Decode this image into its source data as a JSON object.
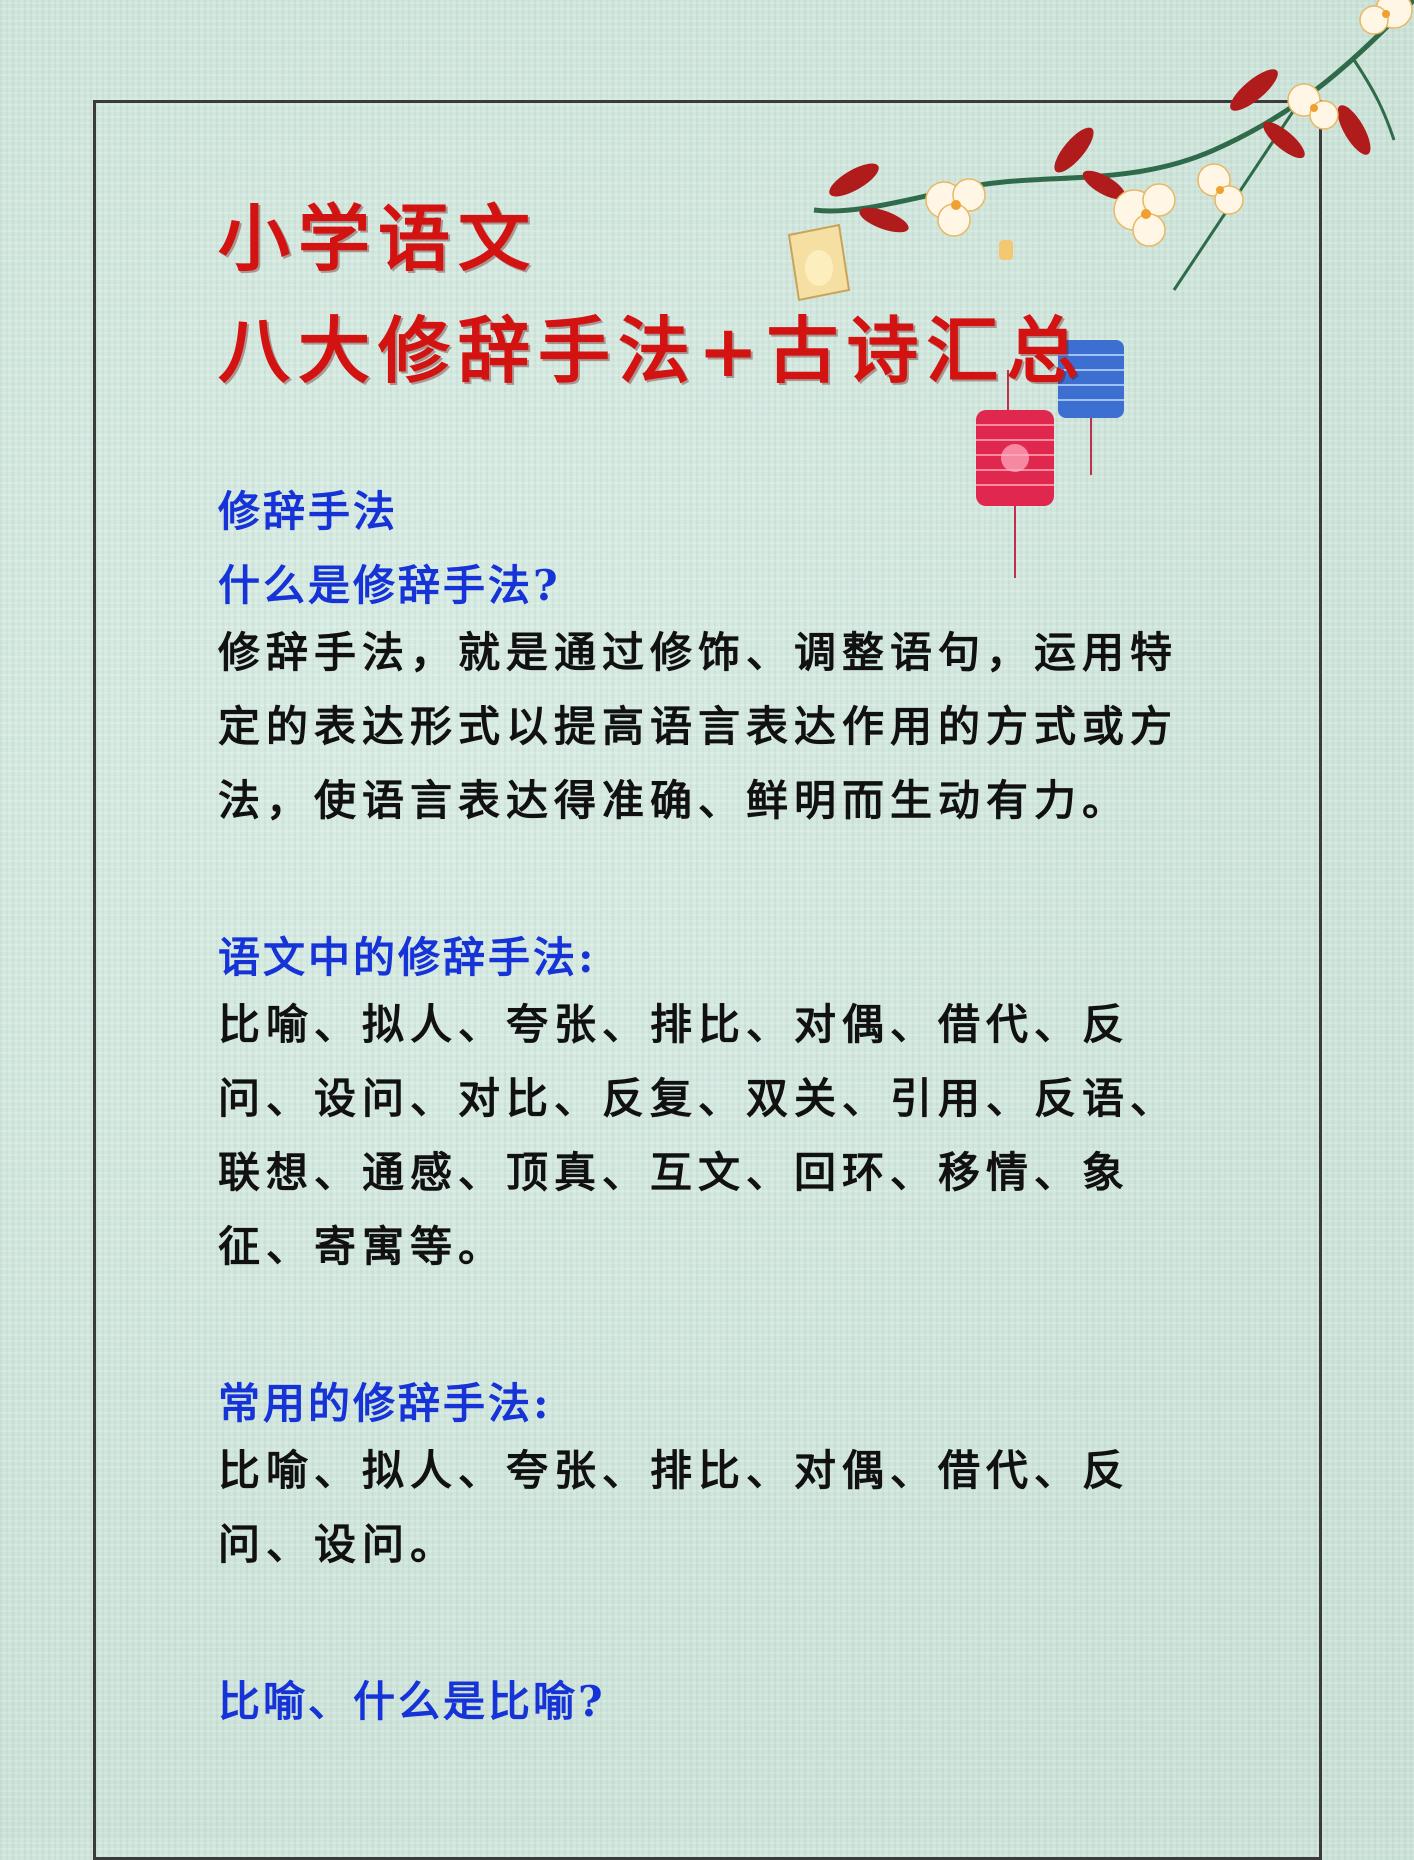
{
  "title": {
    "line1": "小学语文",
    "line2": "八大修辞手法+古诗汇总"
  },
  "sections": {
    "heading1": "修辞手法",
    "question1": "什么是修辞手法?",
    "definition": "修辞手法，就是通过修饰、调整语句，运用特定的表达形式以提高语言表达作用的方式或方法，使语言表达得准确、鲜明而生动有力。",
    "heading2": "语文中的修辞手法:",
    "list_all": "比喻、拟人、夸张、排比、对偶、借代、反问、设问、对比、反复、双关、引用、反语、联想、通感、顶真、互文、回环、移情、象征、寄寓等。",
    "heading3": "常用的修辞手法:",
    "list_common": "比喻、拟人、夸张、排比、对偶、借代、反问、设问。",
    "heading4": "比喻、什么是比喻?"
  },
  "colors": {
    "title": "#d31212",
    "heading": "#1533d6",
    "body": "#111111",
    "background": "#cfe6de"
  },
  "decorations": [
    "plum-blossom-branch",
    "paper-lantern",
    "red-lantern",
    "blue-lantern"
  ]
}
